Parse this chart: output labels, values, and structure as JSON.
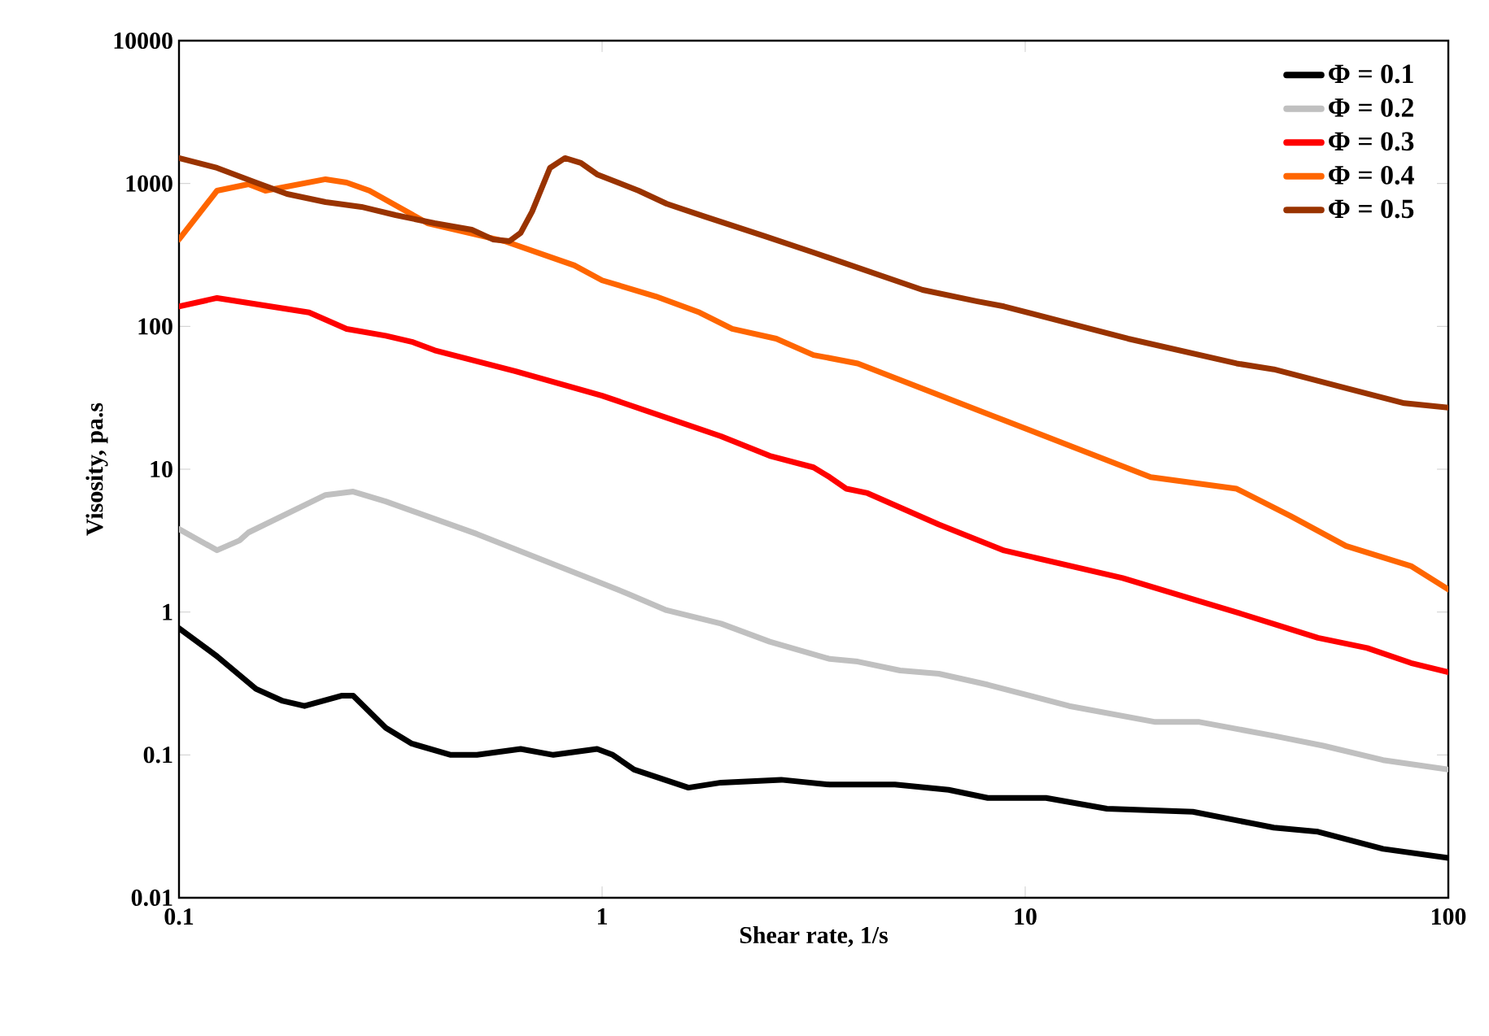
{
  "chart_data": {
    "type": "line",
    "xlabel": "Shear rate, 1/s",
    "ylabel": "Visosity, pa.s",
    "log": "xy",
    "xlim": [
      0.1,
      100
    ],
    "ylim": [
      0.01,
      10000
    ],
    "xticks": [
      0.1,
      1,
      10,
      100
    ],
    "yticks": [
      0.01,
      0.1,
      1,
      10,
      100,
      1000,
      10000
    ],
    "legend": "top right",
    "series": [
      {
        "name": "Φ = 0.1",
        "color": "#000000",
        "x": [
          0.1,
          0.123,
          0.152,
          0.175,
          0.198,
          0.243,
          0.258,
          0.308,
          0.355,
          0.439,
          0.506,
          0.642,
          0.767,
          0.973,
          1.06,
          1.19,
          1.6,
          1.91,
          2.65,
          3.45,
          4.92,
          6.59,
          8.16,
          11.2,
          15.6,
          24.9,
          38.7,
          49.2,
          70.1,
          100
        ],
        "values": [
          0.77,
          0.49,
          0.29,
          0.24,
          0.22,
          0.26,
          0.26,
          0.155,
          0.12,
          0.1,
          0.1,
          0.11,
          0.1,
          0.11,
          0.1,
          0.079,
          0.059,
          0.064,
          0.067,
          0.062,
          0.062,
          0.057,
          0.05,
          0.05,
          0.042,
          0.04,
          0.031,
          0.029,
          0.022,
          0.019
        ]
      },
      {
        "name": "Φ = 0.2",
        "color": "#c0c0c0",
        "x": [
          0.1,
          0.123,
          0.139,
          0.146,
          0.222,
          0.258,
          0.308,
          0.506,
          0.973,
          1.16,
          1.42,
          1.91,
          2.49,
          3.45,
          4.02,
          5.06,
          6.25,
          8.16,
          12.7,
          20.3,
          25.8,
          38.7,
          50.6,
          70.1,
          100
        ],
        "values": [
          3.81,
          2.71,
          3.17,
          3.61,
          6.6,
          6.97,
          5.95,
          3.52,
          1.64,
          1.33,
          1.03,
          0.83,
          0.62,
          0.47,
          0.45,
          0.39,
          0.37,
          0.31,
          0.22,
          0.17,
          0.17,
          0.136,
          0.116,
          0.092,
          0.079
        ]
      },
      {
        "name": "Φ = 0.3",
        "color": "#ff0000",
        "x": [
          0.1,
          0.123,
          0.203,
          0.249,
          0.308,
          0.355,
          0.402,
          0.625,
          1,
          1.91,
          2.49,
          3.16,
          3.45,
          3.78,
          4.24,
          6.25,
          8.91,
          17.0,
          24.9,
          32.5,
          49.2,
          64.3,
          81.6,
          100
        ],
        "values": [
          138,
          158,
          125,
          96,
          86,
          78,
          68,
          48.5,
          32.7,
          17,
          12.4,
          10.3,
          8.8,
          7.3,
          6.8,
          4.1,
          2.7,
          1.73,
          1.23,
          0.97,
          0.66,
          0.56,
          0.44,
          0.38
        ]
      },
      {
        "name": "Φ = 0.4",
        "color": "#ff6600",
        "x": [
          0.1,
          0.123,
          0.146,
          0.16,
          0.222,
          0.249,
          0.282,
          0.387,
          0.588,
          0.86,
          1,
          1.34,
          1.7,
          2.03,
          2.58,
          3.16,
          4.02,
          8.91,
          19.8,
          31.6,
          42.4,
          57.3,
          81.6,
          100
        ],
        "values": [
          406,
          891,
          989,
          891,
          1071,
          1016,
          891,
          527,
          395,
          267,
          210,
          162,
          125,
          96,
          82,
          63,
          55,
          22,
          8.8,
          7.3,
          4.7,
          2.9,
          2.1,
          1.44
        ]
      },
      {
        "name": "Φ = 0.5",
        "color": "#993300",
        "x": [
          0.1,
          0.123,
          0.152,
          0.18,
          0.222,
          0.27,
          0.325,
          0.402,
          0.492,
          0.552,
          0.604,
          0.642,
          0.683,
          0.753,
          0.817,
          0.891,
          0.973,
          1.22,
          1.42,
          1.75,
          2.43,
          3.16,
          5.72,
          7.67,
          8.91,
          17.5,
          31.6,
          38.7,
          55.2,
          78.7,
          100
        ],
        "values": [
          1506,
          1286,
          1016,
          845,
          741,
          686,
          601,
          527,
          475,
          406,
          395,
          451,
          634,
          1286,
          1506,
          1393,
          1159,
          891,
          722,
          586,
          427,
          329,
          180,
          150,
          138,
          82,
          55,
          50,
          38,
          29,
          27
        ]
      }
    ]
  }
}
